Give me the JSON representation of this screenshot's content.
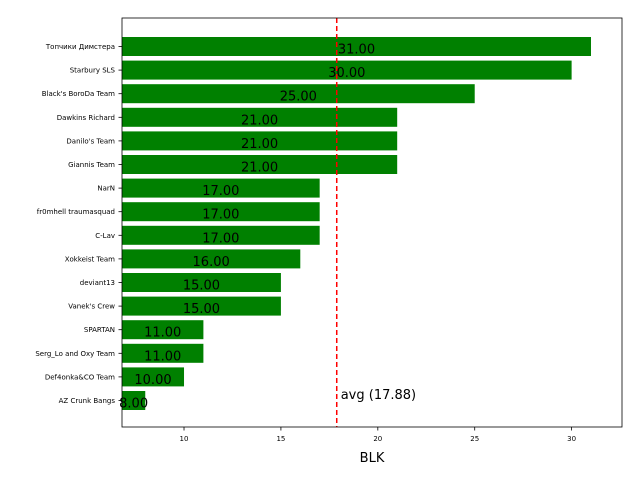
{
  "chart_data": {
    "type": "bar",
    "orientation": "horizontal",
    "categories": [
      "Топчики Димстера",
      "Starbury SLS",
      "Black's BoroDa Team",
      "Dawkins Richard",
      "Danilo's Team",
      "Giannis Team",
      "NarN",
      "fr0mhell traumasquad",
      "C-Lav",
      "Xokkeist Team",
      "deviant13",
      "Vanek's Crew",
      "SPARTAN",
      "Serg_Lo and Oxy Team",
      "Def4onka&CO Team",
      "AZ Crunk Bangs"
    ],
    "values": [
      31,
      30,
      25,
      21,
      21,
      21,
      17,
      17,
      17,
      16,
      15,
      15,
      11,
      11,
      10,
      8
    ],
    "value_labels": [
      "31.00",
      "30.00",
      "25.00",
      "21.00",
      "21.00",
      "21.00",
      "17.00",
      "17.00",
      "17.00",
      "16.00",
      "15.00",
      "15.00",
      "11.00",
      "11.00",
      "10.00",
      "8.00"
    ],
    "xlabel": "BLK",
    "xlim": [
      6.8,
      32.6
    ],
    "xticks": [
      10,
      15,
      20,
      25,
      30
    ],
    "bar_color": "#008000",
    "average": {
      "value": 17.88,
      "label": "avg (17.88)",
      "color": "#ff0000",
      "style": "dashed"
    },
    "grid": false,
    "legend": "none"
  }
}
